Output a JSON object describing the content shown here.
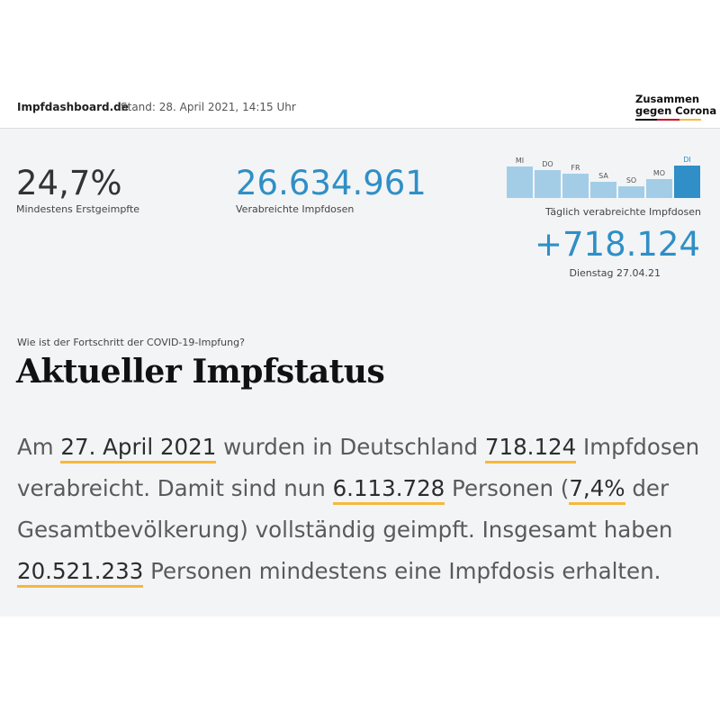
{
  "header": {
    "brand": "Impfdashboard.de",
    "stand": "Stand: 28. April 2021, 14:15 Uhr",
    "logo_line1": "Zusammen",
    "logo_line2": "gegen Corona"
  },
  "stats": [
    {
      "value": "24,7%",
      "label": "Mindestens Erstgeimpfte",
      "color": "#333333"
    },
    {
      "value": "26.634.961",
      "label": "Verabreichte Impfdosen",
      "color": "#2f8fc6"
    }
  ],
  "daily": {
    "days": [
      "MI",
      "DO",
      "FR",
      "SA",
      "SO",
      "MO",
      "DI"
    ],
    "relative_values": [
      0.97,
      0.86,
      0.75,
      0.49,
      0.37,
      0.57,
      1.0
    ],
    "label": "Täglich verabreichte Impfdosen",
    "value": "+718.124",
    "date": "Dienstag 27.04.21",
    "bar_color": "#a3cde6",
    "highlight_color": "#2f8fc6"
  },
  "section": {
    "question": "Wie ist der Fortschritt der COVID-19-Impfung?",
    "title": "Aktueller Impfstatus"
  },
  "paragraph": {
    "t1": "Am ",
    "h1": "27. April 2021",
    "t2": " wurden in Deutschland ",
    "h2": "718.124",
    "t3": " Impfdosen verabreicht. Damit sind nun ",
    "h3": "6.113.728",
    "t4": " Personen (",
    "h4": "7,4%",
    "t5": " der Gesamtbevölkerung) vollständig geimpft. Insgesamt haben ",
    "h5": "20.521.233",
    "t6": " Personen mindestens eine Impfdosis erhalten."
  }
}
